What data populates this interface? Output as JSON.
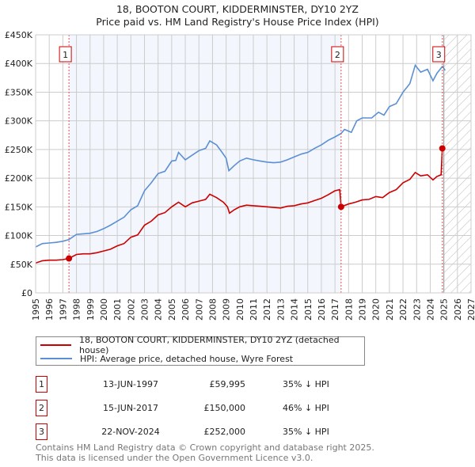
{
  "title_line1": "18, BOOTON COURT, KIDDERMINSTER, DY10 2YZ",
  "title_line2": "Price paid vs. HM Land Registry's House Price Index (HPI)",
  "chart_data": {
    "type": "line",
    "title": "18, BOOTON COURT, KIDDERMINSTER, DY10 2YZ - Price paid vs. HM Land Registry's House Price Index (HPI)",
    "xlim": [
      1995,
      2027
    ],
    "ylim": [
      0,
      450000
    ],
    "x_ticks": [
      "1995",
      "1996",
      "1997",
      "1998",
      "1999",
      "2000",
      "2001",
      "2002",
      "2003",
      "2004",
      "2005",
      "2006",
      "2007",
      "2008",
      "2009",
      "2010",
      "2011",
      "2012",
      "2013",
      "2014",
      "2015",
      "2016",
      "2017",
      "2018",
      "2019",
      "2020",
      "2021",
      "2022",
      "2023",
      "2024",
      "2025",
      "2026",
      "2027"
    ],
    "y_ticks": [
      {
        "v": 0,
        "label": "£0"
      },
      {
        "v": 50000,
        "label": "£50K"
      },
      {
        "v": 100000,
        "label": "£100K"
      },
      {
        "v": 150000,
        "label": "£150K"
      },
      {
        "v": 200000,
        "label": "£200K"
      },
      {
        "v": 250000,
        "label": "£250K"
      },
      {
        "v": 300000,
        "label": "£300K"
      },
      {
        "v": 350000,
        "label": "£350K"
      },
      {
        "v": 400000,
        "label": "£400K"
      },
      {
        "v": 450000,
        "label": "£450K"
      }
    ],
    "grid": true,
    "shaded_ranges": [
      [
        1997.45,
        2017.45
      ]
    ],
    "hatched_from": 2025.0,
    "series": [
      {
        "name": "18, BOOTON COURT, KIDDERMINSTER, DY10 2YZ (detached house)",
        "color": "#cc0000",
        "points": [
          [
            1995,
            52000
          ],
          [
            1995.5,
            56000
          ],
          [
            1996,
            57000
          ],
          [
            1996.5,
            57000
          ],
          [
            1997,
            58000
          ],
          [
            1997.45,
            59995
          ],
          [
            1998,
            67000
          ],
          [
            1998.5,
            68000
          ],
          [
            1999,
            68000
          ],
          [
            1999.5,
            70000
          ],
          [
            2000,
            73000
          ],
          [
            2000.5,
            76000
          ],
          [
            2001,
            82000
          ],
          [
            2001.5,
            86000
          ],
          [
            2002,
            97000
          ],
          [
            2002.5,
            101000
          ],
          [
            2003,
            118000
          ],
          [
            2003.5,
            125000
          ],
          [
            2004,
            136000
          ],
          [
            2004.5,
            140000
          ],
          [
            2005,
            150000
          ],
          [
            2005.5,
            158000
          ],
          [
            2006,
            150000
          ],
          [
            2006.5,
            157000
          ],
          [
            2007,
            160000
          ],
          [
            2007.5,
            163000
          ],
          [
            2007.8,
            172000
          ],
          [
            2008.3,
            166000
          ],
          [
            2008.8,
            158000
          ],
          [
            2009.1,
            150000
          ],
          [
            2009.25,
            139000
          ],
          [
            2009.6,
            145000
          ],
          [
            2010,
            150000
          ],
          [
            2010.5,
            153000
          ],
          [
            2011,
            152000
          ],
          [
            2011.5,
            151000
          ],
          [
            2012,
            150000
          ],
          [
            2012.5,
            149000
          ],
          [
            2013,
            148000
          ],
          [
            2013.5,
            151000
          ],
          [
            2014,
            152000
          ],
          [
            2014.5,
            155000
          ],
          [
            2015,
            157000
          ],
          [
            2015.5,
            161000
          ],
          [
            2016,
            165000
          ],
          [
            2016.5,
            171000
          ],
          [
            2017,
            178000
          ],
          [
            2017.35,
            180000
          ],
          [
            2017.45,
            150000
          ],
          [
            2018,
            155000
          ],
          [
            2018.5,
            158000
          ],
          [
            2019,
            162000
          ],
          [
            2019.5,
            163000
          ],
          [
            2020,
            168000
          ],
          [
            2020.5,
            166000
          ],
          [
            2021,
            175000
          ],
          [
            2021.5,
            180000
          ],
          [
            2022,
            192000
          ],
          [
            2022.5,
            198000
          ],
          [
            2022.9,
            210000
          ],
          [
            2023.3,
            204000
          ],
          [
            2023.8,
            206000
          ],
          [
            2024.2,
            197000
          ],
          [
            2024.5,
            203000
          ],
          [
            2024.8,
            206000
          ],
          [
            2024.89,
            252000
          ]
        ]
      },
      {
        "name": "HPI: Average price, detached house, Wyre Forest",
        "color": "#5b8fd4",
        "points": [
          [
            1995,
            80000
          ],
          [
            1995.5,
            86000
          ],
          [
            1996,
            87000
          ],
          [
            1996.5,
            88000
          ],
          [
            1997,
            90000
          ],
          [
            1997.45,
            93000
          ],
          [
            1998,
            102000
          ],
          [
            1998.5,
            103000
          ],
          [
            1999,
            104000
          ],
          [
            1999.5,
            107000
          ],
          [
            2000,
            112000
          ],
          [
            2000.5,
            118000
          ],
          [
            2001,
            125000
          ],
          [
            2001.5,
            132000
          ],
          [
            2002,
            145000
          ],
          [
            2002.5,
            152000
          ],
          [
            2003,
            178000
          ],
          [
            2003.5,
            192000
          ],
          [
            2004,
            208000
          ],
          [
            2004.5,
            212000
          ],
          [
            2005,
            230000
          ],
          [
            2005.3,
            231000
          ],
          [
            2005.5,
            245000
          ],
          [
            2006,
            232000
          ],
          [
            2006.5,
            240000
          ],
          [
            2007,
            248000
          ],
          [
            2007.5,
            252000
          ],
          [
            2007.8,
            265000
          ],
          [
            2008.3,
            258000
          ],
          [
            2008.7,
            245000
          ],
          [
            2009.0,
            235000
          ],
          [
            2009.2,
            213000
          ],
          [
            2009.6,
            222000
          ],
          [
            2010,
            230000
          ],
          [
            2010.5,
            235000
          ],
          [
            2011,
            232000
          ],
          [
            2011.5,
            230000
          ],
          [
            2012,
            228000
          ],
          [
            2012.5,
            227000
          ],
          [
            2013,
            228000
          ],
          [
            2013.5,
            232000
          ],
          [
            2014,
            237000
          ],
          [
            2014.5,
            242000
          ],
          [
            2015,
            245000
          ],
          [
            2015.5,
            252000
          ],
          [
            2016,
            258000
          ],
          [
            2016.5,
            266000
          ],
          [
            2017,
            272000
          ],
          [
            2017.45,
            278000
          ],
          [
            2017.7,
            285000
          ],
          [
            2018.2,
            280000
          ],
          [
            2018.6,
            300000
          ],
          [
            2019,
            305000
          ],
          [
            2019.7,
            305000
          ],
          [
            2020.2,
            315000
          ],
          [
            2020.6,
            310000
          ],
          [
            2021,
            325000
          ],
          [
            2021.5,
            330000
          ],
          [
            2022,
            350000
          ],
          [
            2022.5,
            365000
          ],
          [
            2022.9,
            397000
          ],
          [
            2023.3,
            385000
          ],
          [
            2023.8,
            390000
          ],
          [
            2024.2,
            370000
          ],
          [
            2024.5,
            383000
          ],
          [
            2024.9,
            395000
          ],
          [
            2025.1,
            388000
          ]
        ]
      }
    ],
    "sales": [
      {
        "id": "1",
        "x": 1997.45,
        "y": 59995
      },
      {
        "id": "2",
        "x": 2017.45,
        "y": 150000
      },
      {
        "id": "3",
        "x": 2024.89,
        "y": 252000
      }
    ]
  },
  "legend": {
    "property": "18, BOOTON COURT, KIDDERMINSTER, DY10 2YZ (detached house)",
    "hpi": "HPI: Average price, detached house, Wyre Forest"
  },
  "transactions": [
    {
      "id": "1",
      "date": "13-JUN-1997",
      "price": "£59,995",
      "hpi": "35% ↓ HPI"
    },
    {
      "id": "2",
      "date": "15-JUN-2017",
      "price": "£150,000",
      "hpi": "46% ↓ HPI"
    },
    {
      "id": "3",
      "date": "22-NOV-2024",
      "price": "£252,000",
      "hpi": "35% ↓ HPI"
    }
  ],
  "footer_line1": "Contains HM Land Registry data © Crown copyright and database right 2025.",
  "footer_line2": "This data is licensed under the Open Government Licence v3.0."
}
